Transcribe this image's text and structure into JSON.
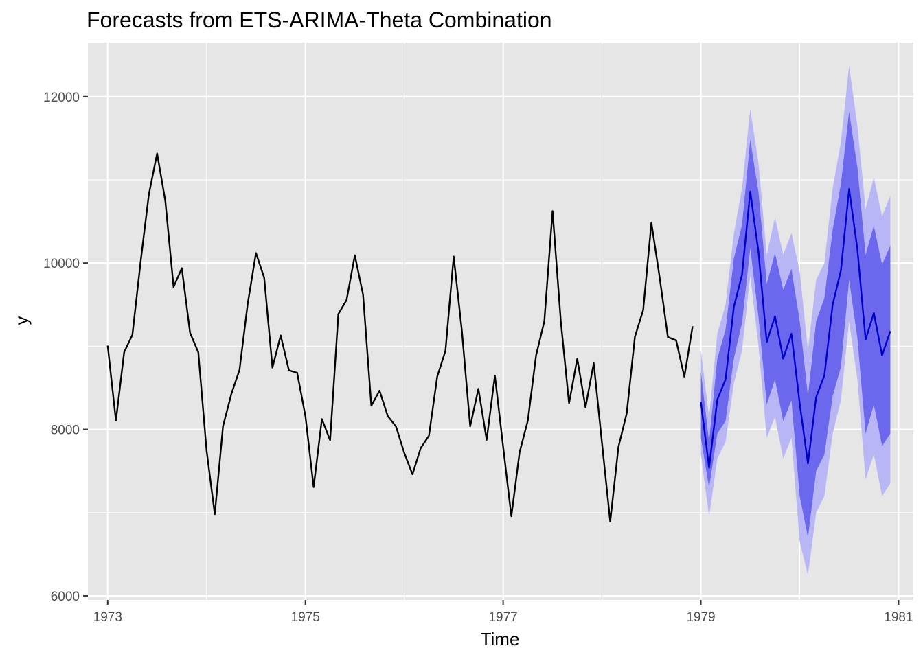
{
  "chart_data": {
    "type": "line",
    "title": "Forecasts from ETS-ARIMA-Theta Combination",
    "xlabel": "Time",
    "ylabel": "y",
    "xlim": [
      1972.8,
      1981.15
    ],
    "ylim": [
      5950,
      12650
    ],
    "x_ticks": [
      1973,
      1975,
      1977,
      1979,
      1981
    ],
    "y_ticks": [
      6000,
      8000,
      10000,
      12000
    ],
    "grid": true,
    "legend": "none",
    "colors": {
      "panel": "#e6e6e6",
      "grid": "#ffffff",
      "history_line": "#000000",
      "forecast_line": "#0000cc",
      "band_80": "#6b68ed",
      "band_95": "#b8b6f5"
    },
    "history": {
      "start": 1973,
      "frequency": 12,
      "values": [
        9007,
        8106,
        8928,
        9137,
        10017,
        10826,
        11317,
        10744,
        9713,
        9938,
        9161,
        8927,
        7750,
        6981,
        8038,
        8422,
        8714,
        9512,
        10120,
        9823,
        8743,
        9129,
        8710,
        8680,
        8162,
        7306,
        8124,
        7870,
        9387,
        9556,
        10093,
        9620,
        8285,
        8466,
        8160,
        8034,
        7717,
        7461,
        7776,
        7925,
        8634,
        8945,
        10078,
        9179,
        8037,
        8488,
        7874,
        8647,
        7792,
        6957,
        7726,
        8106,
        8890,
        9299,
        10625,
        9302,
        8314,
        8850,
        8265,
        8796,
        7836,
        6892,
        7791,
        8192,
        9115,
        9434,
        10484,
        9827,
        9110,
        9070,
        8633,
        9240
      ]
    },
    "forecast": {
      "start": 1979,
      "frequency": 12,
      "mean": [
        8330,
        7540,
        8360,
        8600,
        9470,
        9860,
        10860,
        10130,
        9050,
        9360,
        8850,
        9150,
        8310,
        7590,
        8390,
        8650,
        9500,
        9910,
        10890,
        10170,
        9080,
        9400,
        8890,
        9180
      ],
      "lower_80": [
        7900,
        7300,
        7950,
        8100,
        8850,
        9280,
        10180,
        9350,
        8300,
        8600,
        8100,
        8350,
        7200,
        6700,
        7500,
        7700,
        8400,
        8750,
        9800,
        9100,
        7950,
        8300,
        7800,
        7950
      ],
      "upper_80": [
        8700,
        7850,
        8850,
        9200,
        10050,
        10460,
        11480,
        10850,
        9750,
        10120,
        9680,
        9930,
        9300,
        8400,
        9300,
        9580,
        10400,
        10950,
        11820,
        11150,
        10100,
        10450,
        9980,
        10210
      ],
      "lower_95": [
        7700,
        6950,
        7650,
        7850,
        8550,
        8950,
        9850,
        9000,
        7900,
        8150,
        7650,
        7900,
        6650,
        6250,
        7000,
        7200,
        7950,
        8350,
        9300,
        8600,
        7400,
        7700,
        7200,
        7350
      ],
      "upper_95": [
        8950,
        8150,
        9150,
        9500,
        10350,
        10900,
        11850,
        11200,
        10100,
        10550,
        10100,
        10360,
        9900,
        8950,
        9800,
        10000,
        10900,
        11450,
        12370,
        11650,
        10650,
        11030,
        10560,
        10810
      ]
    }
  }
}
